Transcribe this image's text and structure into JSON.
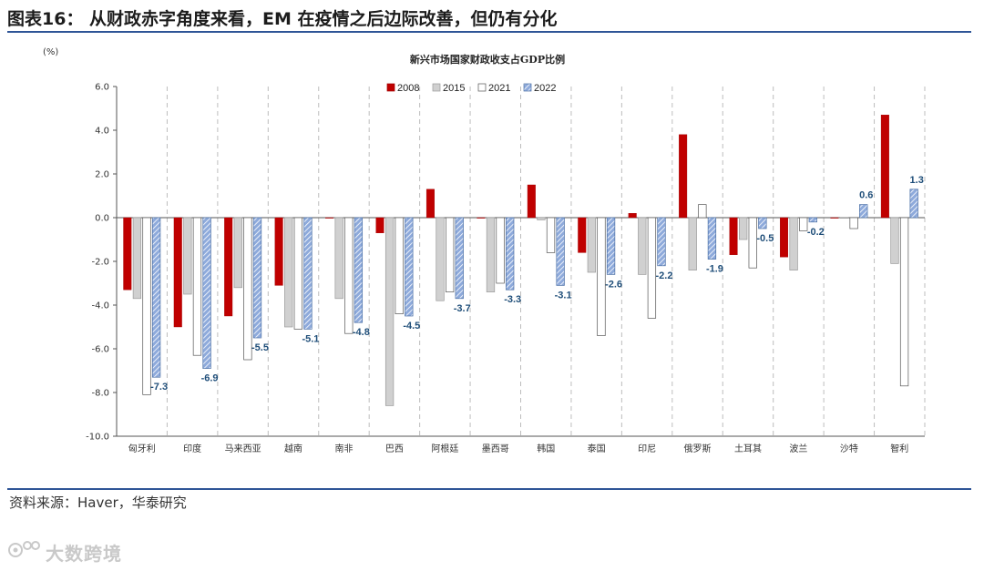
{
  "header": {
    "title": "图表16：  从财政赤字角度来看，EM 在疫情之后边际改善，但仍有分化"
  },
  "source": "资料来源：Haver，华泰研究",
  "watermark": {
    "text": "大数跨境",
    "icon": "brand-logo-icon"
  },
  "colors": {
    "2008": "#c00000",
    "2015": "#d0d0d0",
    "2021": "#ffffff",
    "2022": "#8eaadb",
    "label": "#1f4e79",
    "rule": "#2f5597"
  },
  "chart_data": {
    "type": "bar",
    "title": "新兴市场国家财政收支占GDP比例",
    "ylabel": "(%)",
    "xlabel": "",
    "ylim": [
      -10,
      6
    ],
    "yticks": [
      "6.0",
      "4.0",
      "2.0",
      "0.0",
      "-2.0",
      "-4.0",
      "-6.0",
      "-8.0",
      "-10.0"
    ],
    "grid": "vertical dashed separators between countries",
    "legend_position": "top",
    "categories": [
      "匈牙利",
      "印度",
      "马来西亚",
      "越南",
      "南非",
      "巴西",
      "阿根廷",
      "墨西哥",
      "韩国",
      "泰国",
      "印尼",
      "俄罗斯",
      "土耳其",
      "波兰",
      "沙特",
      "智利"
    ],
    "series": [
      {
        "name": "2008",
        "values": [
          -3.3,
          -5.0,
          -4.5,
          -3.1,
          0.0,
          -0.7,
          1.3,
          0.0,
          1.5,
          -1.6,
          0.2,
          3.8,
          -1.7,
          -1.8,
          0.0,
          4.7
        ]
      },
      {
        "name": "2015",
        "values": [
          -3.7,
          -3.5,
          -3.2,
          -5.0,
          -3.7,
          -8.6,
          -3.8,
          -3.4,
          -0.1,
          -2.5,
          -2.6,
          -2.4,
          -1.0,
          -2.4,
          0.0,
          -2.1
        ]
      },
      {
        "name": "2021",
        "values": [
          -8.1,
          -6.3,
          -6.5,
          -5.1,
          -5.3,
          -4.4,
          -3.4,
          -3.0,
          -1.6,
          -5.4,
          -4.6,
          0.6,
          -2.3,
          -0.6,
          -0.5,
          -7.7
        ]
      },
      {
        "name": "2022",
        "values": [
          -7.3,
          -6.9,
          -5.5,
          -5.1,
          -4.8,
          -4.5,
          -3.7,
          -3.3,
          -3.1,
          -2.6,
          -2.2,
          -1.9,
          -0.5,
          -0.2,
          0.6,
          1.3
        ]
      }
    ],
    "data_labels_series": "2022",
    "data_labels": [
      "-7.3",
      "-6.9",
      "-5.5",
      "-5.1",
      "-4.8",
      "-4.5",
      "-3.7",
      "-3.3",
      "-3.1",
      "-2.6",
      "-2.2",
      "-1.9",
      "-0.5",
      "-0.2",
      "0.6",
      "1.3"
    ]
  }
}
